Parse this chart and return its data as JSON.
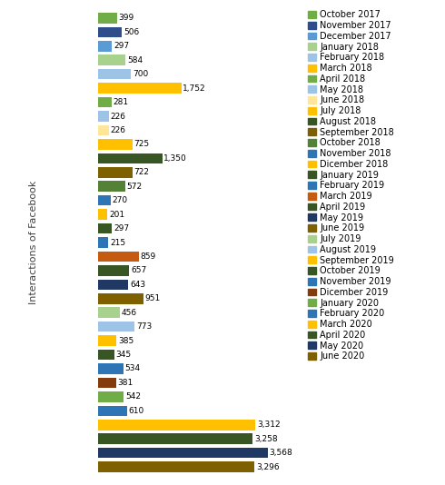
{
  "labels": [
    "October 2017",
    "November 2017",
    "December 2017",
    "January 2018",
    "February 2018",
    "March 2018",
    "April 2018",
    "May 2018",
    "June 2018",
    "July 2018",
    "August 2018",
    "September 2018",
    "October 2018",
    "November 2018",
    "Dicember 2018",
    "January 2019",
    "February 2019",
    "March 2019",
    "April 2019",
    "May 2019",
    "June 2019",
    "July 2019",
    "August 2019",
    "September 2019",
    "October 2019",
    "November 2019",
    "Dicember 2019",
    "January 2020",
    "February 2020",
    "March 2020",
    "April 2020",
    "May 2020",
    "June 2020"
  ],
  "values": [
    399,
    506,
    297,
    584,
    700,
    1752,
    281,
    226,
    226,
    725,
    1350,
    722,
    572,
    270,
    201,
    297,
    215,
    859,
    657,
    643,
    951,
    456,
    773,
    385,
    345,
    534,
    381,
    542,
    610,
    3312,
    3258,
    3568,
    3296
  ],
  "bar_colors": [
    "#70ad47",
    "#2e4d8a",
    "#5b9bd5",
    "#a9d18e",
    "#9dc3e6",
    "#ffc000",
    "#70ad47",
    "#9dc3e6",
    "#ffe699",
    "#ffc000",
    "#375623",
    "#7f6000",
    "#538135",
    "#2e75b6",
    "#ffc000",
    "#375623",
    "#2e75b6",
    "#c55a11",
    "#375623",
    "#1f3864",
    "#7f6000",
    "#a9d18e",
    "#9dc3e6",
    "#ffc000",
    "#375623",
    "#2e75b6",
    "#843c0c",
    "#70ad47",
    "#2e75b6",
    "#ffc000",
    "#375623",
    "#1f3864",
    "#7f6000"
  ],
  "legend_colors": [
    "#70ad47",
    "#2e4d8a",
    "#5b9bd5",
    "#a9d18e",
    "#9dc3e6",
    "#ffc000",
    "#70ad47",
    "#9dc3e6",
    "#ffe699",
    "#ffc000",
    "#375623",
    "#7f6000",
    "#538135",
    "#2e75b6",
    "#ffc000",
    "#375623",
    "#2e75b6",
    "#c55a11",
    "#375623",
    "#1f3864",
    "#7f6000",
    "#a9d18e",
    "#9dc3e6",
    "#ffc000",
    "#375623",
    "#2e75b6",
    "#843c0c",
    "#70ad47",
    "#2e75b6",
    "#ffc000",
    "#375623",
    "#1f3864",
    "#7f6000"
  ],
  "ylabel": "Interactions of Facebook",
  "background_color": "#ffffff",
  "bar_height": 0.75,
  "fontsize_labels": 6.5,
  "fontsize_legend": 7.0
}
